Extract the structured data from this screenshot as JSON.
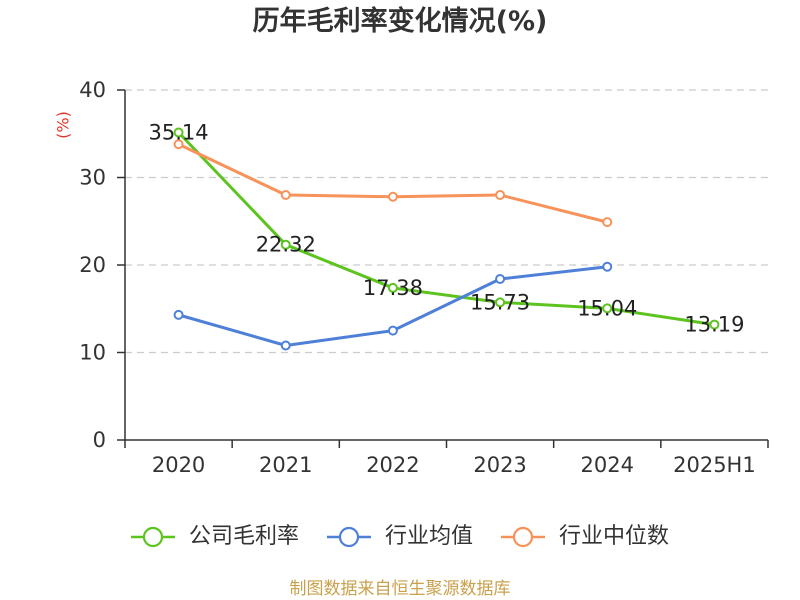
{
  "footer": "制图数据来自恒生聚源数据库",
  "colors": {
    "ylabel": "#e0352b",
    "footer": "#c9a14c"
  },
  "chart_data": {
    "type": "line",
    "title": "历年毛利率变化情况(%)",
    "xlabel": "",
    "ylabel": "(%)",
    "categories": [
      "2020",
      "2021",
      "2022",
      "2023",
      "2024",
      "2025H1"
    ],
    "ylim": [
      0,
      40
    ],
    "yticks": [
      0,
      10,
      20,
      30,
      40
    ],
    "grid": true,
    "legend_position": "bottom",
    "series": [
      {
        "name": "公司毛利率",
        "color": "#5cc31f",
        "data_labels": true,
        "values": [
          35.14,
          22.32,
          17.38,
          15.73,
          15.04,
          13.19
        ]
      },
      {
        "name": "行业均值",
        "color": "#4e80d8",
        "data_labels": false,
        "values": [
          14.3,
          10.8,
          12.5,
          18.4,
          19.8,
          null
        ]
      },
      {
        "name": "行业中位数",
        "color": "#f7935a",
        "data_labels": false,
        "values": [
          33.8,
          28.0,
          27.8,
          28.0,
          24.9,
          null
        ]
      }
    ]
  }
}
